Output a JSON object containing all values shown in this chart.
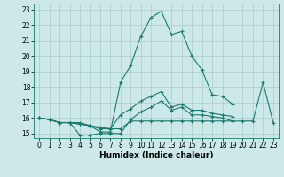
{
  "xlabel": "Humidex (Indice chaleur)",
  "x": [
    0,
    1,
    2,
    3,
    4,
    5,
    6,
    7,
    8,
    9,
    10,
    11,
    12,
    13,
    14,
    15,
    16,
    17,
    18,
    19,
    20,
    21,
    22,
    23
  ],
  "line_max": [
    16.0,
    15.9,
    15.7,
    15.7,
    15.7,
    15.5,
    15.1,
    15.1,
    18.3,
    19.4,
    21.3,
    22.5,
    22.9,
    21.4,
    21.6,
    20.0,
    19.1,
    17.5,
    17.4,
    16.9,
    null,
    null,
    null,
    null
  ],
  "line_mean": [
    16.0,
    15.9,
    15.7,
    15.7,
    15.6,
    15.5,
    15.3,
    15.3,
    16.2,
    16.6,
    17.1,
    17.4,
    17.7,
    16.7,
    16.9,
    16.5,
    16.5,
    16.3,
    16.2,
    16.1,
    null,
    null,
    null,
    null
  ],
  "line_min": [
    16.0,
    15.9,
    15.7,
    15.7,
    14.9,
    14.9,
    15.0,
    15.0,
    15.0,
    15.9,
    16.4,
    16.7,
    17.1,
    16.5,
    16.7,
    16.2,
    16.2,
    16.1,
    16.0,
    15.8,
    null,
    null,
    null,
    null
  ],
  "line_flat": [
    16.0,
    15.9,
    15.7,
    15.7,
    15.6,
    15.5,
    15.4,
    15.3,
    15.3,
    15.8,
    15.8,
    15.8,
    15.8,
    15.8,
    15.8,
    15.8,
    15.8,
    15.8,
    15.8,
    15.8,
    15.8,
    15.8,
    18.3,
    15.7
  ],
  "bg_color": "#cce8e8",
  "line_color": "#1a7a6e",
  "grid_color": "#aacccc",
  "ylim": [
    14.7,
    23.4
  ],
  "yticks": [
    15,
    16,
    17,
    18,
    19,
    20,
    21,
    22,
    23
  ],
  "xlim": [
    -0.5,
    23.5
  ],
  "xticks": [
    0,
    1,
    2,
    3,
    4,
    5,
    6,
    7,
    8,
    9,
    10,
    11,
    12,
    13,
    14,
    15,
    16,
    17,
    18,
    19,
    20,
    21,
    22,
    23
  ],
  "tick_fontsize": 5.5,
  "xlabel_fontsize": 6.5,
  "marker_size": 2.5,
  "lw": 0.8
}
